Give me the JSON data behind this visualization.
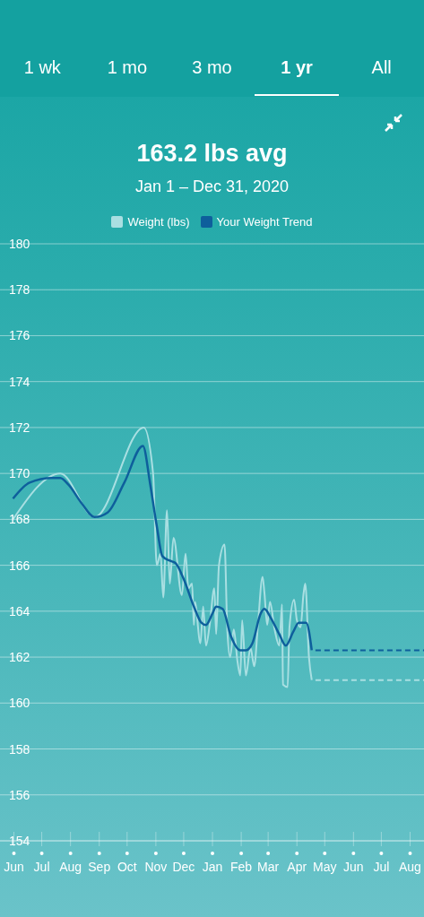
{
  "chart_data": {
    "type": "line",
    "title": "163.2 lbs avg",
    "subtitle": "Jan 1 – Dec 31, 2020",
    "annotations": [
      "1 wk",
      "1 mo",
      "3 mo",
      "1 yr",
      "All"
    ],
    "legend": "top",
    "grid": "y",
    "marker": "none",
    "xlim": [
      "2019-05-17",
      "2020-08-16"
    ],
    "xticks": [
      {
        "value": "2019-06",
        "label": "Jun"
      },
      {
        "value": "2019-07",
        "label": "Jul"
      },
      {
        "value": "2019-08",
        "label": "Aug"
      },
      {
        "value": "2019-09",
        "label": "Sep"
      },
      {
        "value": "2019-10",
        "label": "Oct"
      },
      {
        "value": "2019-11",
        "label": "Nov"
      },
      {
        "value": "2019-12",
        "label": "Dec"
      },
      {
        "value": "2020-01",
        "label": "Jan"
      },
      {
        "value": "2020-02",
        "label": "Feb"
      },
      {
        "value": "2020-03",
        "label": "Mar"
      },
      {
        "value": "2020-04",
        "label": "Apr"
      },
      {
        "value": "2020-05",
        "label": "May"
      },
      {
        "value": "2020-06",
        "label": "Jun"
      },
      {
        "value": "2020-07",
        "label": "Jul"
      },
      {
        "value": "2020-08",
        "label": "Aug"
      }
    ],
    "ylim": [
      154,
      180
    ],
    "yticks": [
      154,
      156,
      158,
      160,
      162,
      164,
      166,
      168,
      170,
      172,
      174,
      176,
      178,
      180
    ],
    "series": [
      {
        "name": "Weight (lbs)",
        "color": "#a9dfe2",
        "line_style": "solid",
        "x": [
          "2019-05-31",
          "2019-07-21",
          "2019-08-27",
          "2019-10-19",
          "2019-10-29",
          "2019-11-02",
          "2019-11-06",
          "2019-11-09",
          "2019-11-13",
          "2019-11-16",
          "2019-11-20",
          "2019-11-29",
          "2019-12-03",
          "2019-12-06",
          "2019-12-10",
          "2019-12-12",
          "2019-12-13",
          "2019-12-19",
          "2019-12-22",
          "2019-12-25",
          "2019-12-29",
          "2020-01-03",
          "2020-01-05",
          "2020-01-08",
          "2020-01-14",
          "2020-01-17",
          "2020-01-20",
          "2020-01-24",
          "2020-01-28",
          "2020-01-31",
          "2020-02-02",
          "2020-02-06",
          "2020-02-11",
          "2020-02-15",
          "2020-02-19",
          "2020-02-24",
          "2020-02-26",
          "2020-02-29",
          "2020-03-03",
          "2020-03-08",
          "2020-03-13",
          "2020-03-16",
          "2020-03-17",
          "2020-03-22",
          "2020-03-24",
          "2020-03-29",
          "2020-04-01",
          "2020-04-05",
          "2020-04-08",
          "2020-04-10",
          "2020-04-14",
          "2020-04-17"
        ],
        "values": [
          168.0,
          170.0,
          168.1,
          172.0,
          170.0,
          166.0,
          166.5,
          164.6,
          168.4,
          165.2,
          167.2,
          164.7,
          166.5,
          165.0,
          165.2,
          163.4,
          164.4,
          162.6,
          164.2,
          162.5,
          163.4,
          165.0,
          163.0,
          166.0,
          166.9,
          163.2,
          162.0,
          163.2,
          161.8,
          161.2,
          163.6,
          161.2,
          162.4,
          161.6,
          163.4,
          165.5,
          164.8,
          163.4,
          164.4,
          163.2,
          162.5,
          164.3,
          160.8,
          160.7,
          163.3,
          164.5,
          163.6,
          163.3,
          164.7,
          165.2,
          162.0,
          161.0
        ]
      },
      {
        "name": "Your Weight Trend",
        "color": "#0e5f9c",
        "line_style": "solid",
        "x": [
          "2019-05-31",
          "2019-06-18",
          "2019-07-12",
          "2019-07-21",
          "2019-07-30",
          "2019-08-13",
          "2019-08-27",
          "2019-09-10",
          "2019-09-28",
          "2019-10-18",
          "2019-10-26",
          "2019-11-02",
          "2019-11-08",
          "2019-11-16",
          "2019-11-22",
          "2019-12-01",
          "2019-12-12",
          "2019-12-20",
          "2019-12-25",
          "2020-01-01",
          "2020-01-05",
          "2020-01-12",
          "2020-01-21",
          "2020-01-31",
          "2020-02-06",
          "2020-02-13",
          "2020-02-22",
          "2020-02-26",
          "2020-03-04",
          "2020-03-13",
          "2020-03-20",
          "2020-03-28",
          "2020-04-03",
          "2020-04-11",
          "2020-04-17"
        ],
        "values": [
          168.9,
          169.6,
          169.8,
          169.8,
          169.5,
          168.7,
          168.1,
          168.3,
          169.6,
          171.2,
          169.5,
          167.7,
          166.4,
          166.2,
          166.1,
          165.4,
          164.2,
          163.5,
          163.4,
          163.9,
          164.2,
          164.1,
          162.9,
          162.3,
          162.3,
          162.6,
          163.9,
          164.1,
          163.7,
          163.0,
          162.5,
          163.1,
          163.5,
          163.5,
          162.3
        ]
      },
      {
        "color": "#0e5f9c",
        "line_style": "dashed",
        "x": [
          "2020-04-21",
          "2020-08-16"
        ],
        "values": [
          162.3,
          162.3
        ]
      },
      {
        "color": "#a9dfe2",
        "line_style": "dashed",
        "x": [
          "2020-04-21",
          "2020-08-16"
        ],
        "values": [
          161.0,
          161.0
        ]
      }
    ]
  }
}
